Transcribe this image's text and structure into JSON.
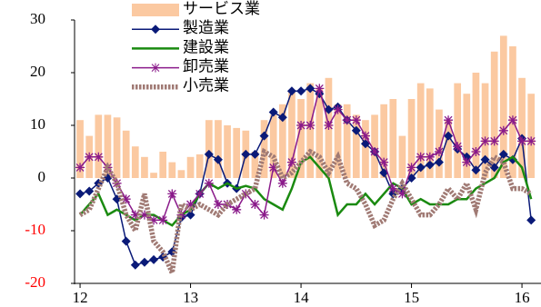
{
  "chart_data": {
    "type": "bar-line",
    "categories": [
      "12",
      null,
      null,
      null,
      null,
      null,
      null,
      null,
      null,
      null,
      null,
      null,
      "13",
      null,
      null,
      null,
      null,
      null,
      null,
      null,
      null,
      null,
      null,
      null,
      "14",
      null,
      null,
      null,
      null,
      null,
      null,
      null,
      null,
      null,
      null,
      null,
      "15",
      null,
      null,
      null,
      null,
      null,
      null,
      null,
      null,
      null,
      null,
      null,
      "16",
      null
    ],
    "series": [
      {
        "name": "サービス業",
        "type": "bar",
        "color": "#fbc9a1",
        "values": [
          11,
          8,
          12,
          12,
          11.5,
          9,
          6,
          4,
          1,
          5,
          3,
          1.5,
          4,
          4.5,
          11,
          11,
          10,
          9.5,
          9,
          5,
          11,
          12,
          14,
          16.5,
          15,
          18,
          17,
          19,
          14,
          14,
          12,
          11,
          12,
          14,
          15,
          8,
          15,
          18,
          17,
          13,
          11,
          18,
          16,
          20,
          18,
          24,
          27,
          25,
          19,
          16
        ]
      },
      {
        "name": "製造業",
        "type": "line",
        "marker": "diamond",
        "color": "#0a1a78",
        "values": [
          -3,
          -2.5,
          -1,
          0,
          -4,
          -12,
          -16.5,
          -16,
          -15.5,
          -15,
          -14,
          -7.5,
          -7,
          -3,
          4.5,
          3.5,
          -1,
          -2,
          4.5,
          4.5,
          8,
          12.5,
          11.5,
          16.5,
          16.5,
          17,
          16,
          13,
          13.5,
          11,
          9,
          6.5,
          5,
          1,
          -3,
          -2,
          0,
          2,
          2.5,
          3,
          8,
          5.5,
          4,
          1.5,
          3.5,
          2,
          4.5,
          3.5,
          7.5,
          -8
        ]
      },
      {
        "name": "建設業",
        "type": "line",
        "marker": "none",
        "color": "#1a8a10",
        "values": [
          -7,
          -5,
          -3,
          -7,
          -6,
          -7,
          -8,
          -7,
          -7,
          -8,
          -9,
          -7,
          -6,
          -3,
          -1,
          -2,
          -1,
          -2,
          -1.5,
          -2,
          -4,
          -5,
          -6,
          -2,
          3,
          4,
          2,
          0,
          -7,
          -5,
          -5,
          -3,
          -5,
          -3,
          -1,
          -2,
          -5,
          -4,
          -5,
          -5,
          -5,
          -4,
          -4,
          -2,
          -1,
          0,
          3,
          4,
          2,
          -4
        ]
      },
      {
        "name": "卸売業",
        "type": "line",
        "marker": "star",
        "color": "#8a1a8a",
        "values": [
          2,
          4,
          4,
          2,
          -1,
          -4,
          -7,
          -7,
          -8,
          -8,
          -3,
          -7,
          -5,
          -3,
          -1,
          -5,
          -5,
          -6,
          -3,
          -5,
          -7,
          2,
          -1,
          3,
          10,
          10,
          17,
          10,
          13,
          11,
          11,
          8,
          5,
          3,
          -2,
          -3,
          2,
          4,
          4,
          5,
          11,
          6,
          3,
          5,
          7,
          7,
          9,
          11,
          7,
          7
        ]
      },
      {
        "name": "小売業",
        "type": "line",
        "marker": "dotted",
        "color": "#a07a74",
        "values": [
          -7,
          -6,
          -2,
          2,
          -1,
          -7,
          -10,
          -3,
          -12,
          -14,
          -18,
          -5,
          -6,
          -5,
          -6,
          -7,
          -5,
          -4,
          -3,
          -2,
          5,
          4,
          0,
          1,
          3,
          5,
          4,
          1,
          4,
          -1,
          -2,
          -5,
          -9,
          -8,
          -4,
          -1,
          -4,
          -7,
          -7,
          -5,
          -2,
          -4,
          -1,
          -6,
          1,
          4,
          3,
          -2,
          -2,
          -3
        ]
      }
    ],
    "ylim": [
      -20,
      30
    ],
    "yticks": [
      -20,
      -10,
      0,
      10,
      20,
      30
    ],
    "negative_tick_color": "#ff0000",
    "grid": false,
    "legend": "top"
  }
}
